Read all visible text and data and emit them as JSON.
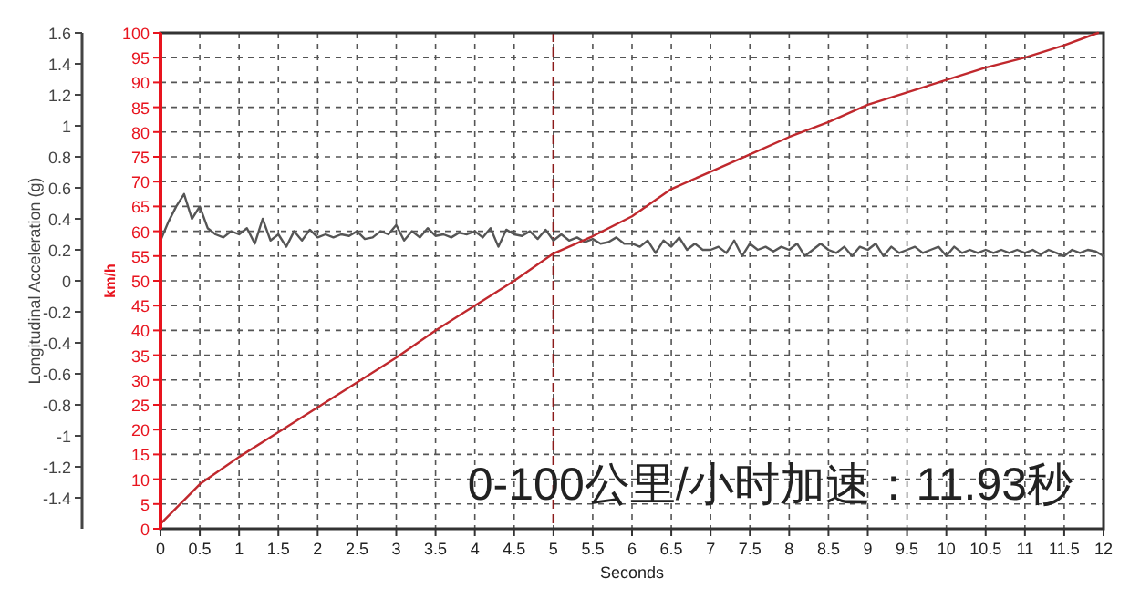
{
  "chart_data": {
    "type": "line",
    "xlabel": "Seconds",
    "ylabel": "Longitudinal Acceleration (g)",
    "y2label": "km/h",
    "annotations": [
      "0-100公里/小时加速：11.93秒"
    ],
    "xlim": [
      0,
      12
    ],
    "xticks": [
      0,
      0.5,
      1,
      1.5,
      2,
      2.5,
      3,
      3.5,
      4,
      4.5,
      5,
      5.5,
      6,
      6.5,
      7,
      7.5,
      8,
      8.5,
      9,
      9.5,
      10,
      10.5,
      11,
      11.5,
      12
    ],
    "ylim": [
      -1.6,
      1.6
    ],
    "yticks": [
      -1.4,
      -1.2,
      -1,
      -0.8,
      -0.6,
      -0.4,
      -0.2,
      0,
      0.2,
      0.4,
      0.6,
      0.8,
      1,
      1.2,
      1.4,
      1.6
    ],
    "y2lim": [
      0,
      100
    ],
    "y2ticks": [
      0,
      5,
      10,
      15,
      20,
      25,
      30,
      35,
      40,
      45,
      50,
      55,
      60,
      65,
      70,
      75,
      80,
      85,
      90,
      95,
      100
    ],
    "grid": true,
    "marker": "none",
    "line_style": "solid",
    "ref_lines": [
      {
        "axis": "x",
        "value": 5,
        "color": "#8b1a1a",
        "line_style": "dashed"
      }
    ],
    "series": [
      {
        "color": "#555555",
        "axis": "y",
        "x": [
          0,
          0.1,
          0.2,
          0.3,
          0.4,
          0.5,
          0.6,
          0.7,
          0.8,
          0.9,
          1,
          1.1,
          1.2,
          1.3,
          1.4,
          1.5,
          1.6,
          1.7,
          1.8,
          1.9,
          2,
          2.1,
          2.2,
          2.3,
          2.4,
          2.5,
          2.6,
          2.7,
          2.8,
          2.9,
          3,
          3.1,
          3.2,
          3.3,
          3.4,
          3.5,
          3.6,
          3.7,
          3.8,
          3.9,
          4,
          4.1,
          4.2,
          4.3,
          4.4,
          4.5,
          4.6,
          4.7,
          4.8,
          4.9,
          5,
          5.1,
          5.2,
          5.3,
          5.4,
          5.5,
          5.6,
          5.7,
          5.8,
          5.9,
          6,
          6.1,
          6.2,
          6.3,
          6.4,
          6.5,
          6.6,
          6.7,
          6.8,
          6.9,
          7,
          7.1,
          7.2,
          7.3,
          7.4,
          7.5,
          7.6,
          7.7,
          7.8,
          7.9,
          8,
          8.1,
          8.2,
          8.3,
          8.4,
          8.5,
          8.6,
          8.7,
          8.8,
          8.9,
          9,
          9.1,
          9.2,
          9.3,
          9.4,
          9.5,
          9.6,
          9.7,
          9.8,
          9.9,
          10,
          10.1,
          10.2,
          10.3,
          10.4,
          10.5,
          10.6,
          10.7,
          10.8,
          10.9,
          11,
          11.1,
          11.2,
          11.3,
          11.4,
          11.5,
          11.6,
          11.7,
          11.8,
          11.9,
          12
        ],
        "values": [
          0.26,
          0.38,
          0.48,
          0.56,
          0.4,
          0.48,
          0.34,
          0.3,
          0.28,
          0.32,
          0.3,
          0.34,
          0.24,
          0.4,
          0.26,
          0.3,
          0.22,
          0.32,
          0.26,
          0.33,
          0.28,
          0.3,
          0.28,
          0.3,
          0.29,
          0.32,
          0.27,
          0.28,
          0.32,
          0.3,
          0.36,
          0.26,
          0.32,
          0.28,
          0.34,
          0.29,
          0.3,
          0.28,
          0.31,
          0.3,
          0.32,
          0.28,
          0.34,
          0.22,
          0.33,
          0.3,
          0.29,
          0.32,
          0.27,
          0.33,
          0.26,
          0.3,
          0.26,
          0.28,
          0.25,
          0.27,
          0.24,
          0.25,
          0.28,
          0.24,
          0.24,
          0.22,
          0.26,
          0.18,
          0.26,
          0.22,
          0.28,
          0.2,
          0.24,
          0.2,
          0.2,
          0.22,
          0.18,
          0.26,
          0.16,
          0.24,
          0.2,
          0.22,
          0.19,
          0.22,
          0.2,
          0.24,
          0.16,
          0.2,
          0.24,
          0.2,
          0.18,
          0.22,
          0.16,
          0.22,
          0.2,
          0.24,
          0.16,
          0.22,
          0.18,
          0.2,
          0.22,
          0.18,
          0.2,
          0.22,
          0.16,
          0.22,
          0.18,
          0.2,
          0.18,
          0.2,
          0.18,
          0.2,
          0.18,
          0.2,
          0.18,
          0.2,
          0.17,
          0.2,
          0.18,
          0.16,
          0.2,
          0.18,
          0.2,
          0.19,
          0.16
        ]
      },
      {
        "color": "#c0282d",
        "axis": "y2",
        "x": [
          0,
          0.25,
          0.5,
          1,
          1.5,
          2,
          2.5,
          3,
          3.5,
          4,
          4.5,
          5,
          5.5,
          6,
          6.5,
          7,
          7.5,
          8,
          8.5,
          9,
          9.5,
          10,
          10.5,
          11,
          11.5,
          11.93
        ],
        "values": [
          1,
          5,
          9,
          14.5,
          19.5,
          24.5,
          29.5,
          34.5,
          40,
          45,
          50,
          55.5,
          59,
          63,
          68.5,
          72,
          75.5,
          79,
          82,
          85.5,
          88,
          90.5,
          93,
          95,
          97.5,
          100
        ]
      }
    ]
  }
}
